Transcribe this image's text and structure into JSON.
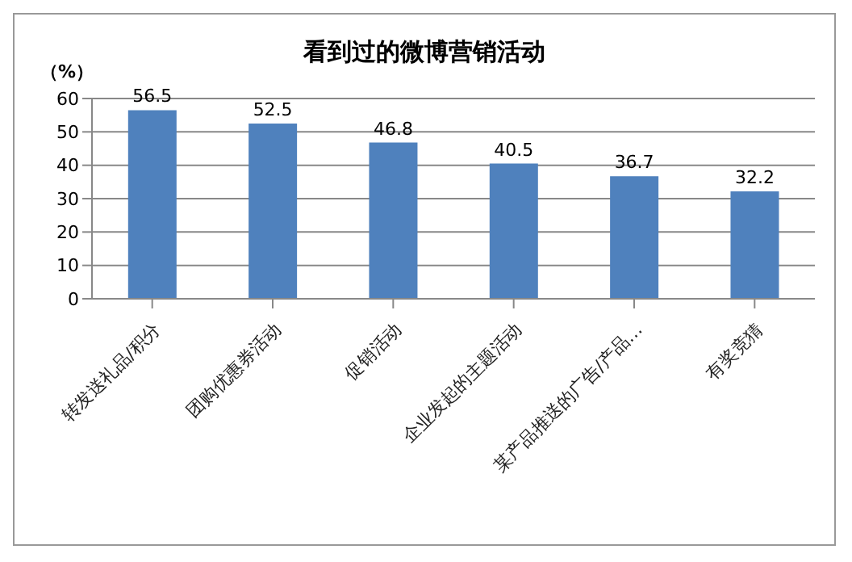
{
  "chart_data": {
    "type": "bar",
    "title": "看到过的微博营销活动",
    "ylabel": "（%）",
    "categories": [
      "转发送礼品/积分",
      "团购优惠券活动",
      "促销活动",
      "企业发起的主题活动",
      "某产品推送的广告/产品…",
      "有奖竞猜"
    ],
    "values": [
      56.5,
      52.5,
      46.8,
      40.5,
      36.7,
      32.2
    ],
    "color": "#4f81bd",
    "ylim": [
      0,
      60
    ],
    "yticks": [
      0,
      10,
      20,
      30,
      40,
      50,
      60
    ],
    "grid": "y",
    "data_labels": true
  }
}
